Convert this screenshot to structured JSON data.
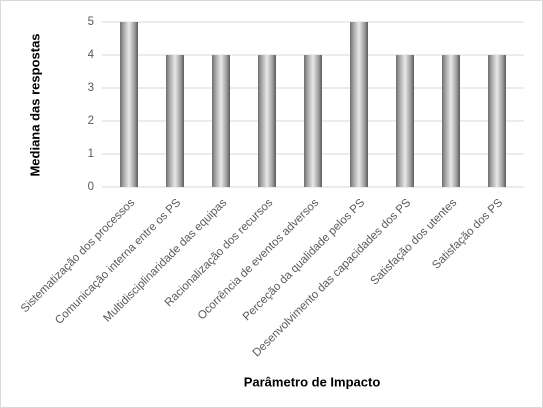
{
  "chart_data": {
    "type": "bar",
    "x_label": "Parâmetro de Impacto",
    "y_label": "Mediana das respostas",
    "categories": [
      "Sistematização dos processos",
      "Comunicação interna entre os PS",
      "Multidisciplinaridade das equipas",
      "Racionalização dos recursos",
      "Ocorrência de eventos adversos",
      "Perceção da qualidade pelos PS",
      "Desenvolvimento das capacidades dos PS",
      "Satisfação dos utentes",
      "Satisfação dos PS"
    ],
    "values": [
      5,
      4,
      4,
      4,
      4,
      5,
      4,
      4,
      4
    ],
    "ylim": [
      0,
      5
    ],
    "yticks": [
      0,
      1,
      2,
      3,
      4,
      5
    ],
    "grid": true
  }
}
